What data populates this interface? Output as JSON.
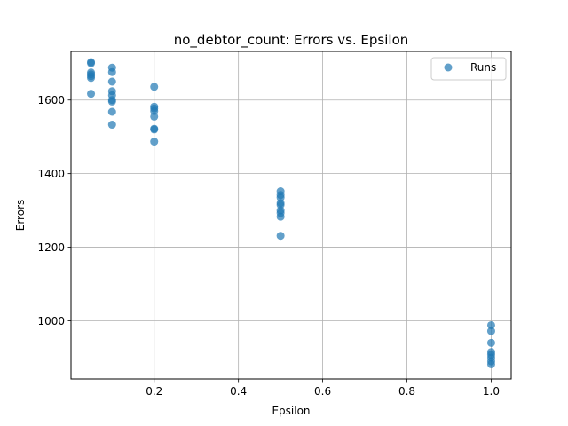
{
  "chart_data": {
    "type": "scatter",
    "title": "no_debtor_count: Errors vs. Epsilon",
    "xlabel": "Epsilon",
    "ylabel": "Errors",
    "xlim": [
      0.0025,
      1.0475
    ],
    "ylim": [
      842,
      1732
    ],
    "x_ticks": [
      0.2,
      0.4,
      0.6,
      0.8,
      1.0
    ],
    "x_tick_labels": [
      "0.2",
      "0.4",
      "0.6",
      "0.8",
      "1.0"
    ],
    "y_ticks": [
      1000,
      1200,
      1400,
      1600
    ],
    "y_tick_labels": [
      "1000",
      "1200",
      "1400",
      "1600"
    ],
    "grid": true,
    "legend": {
      "position": "top-right"
    },
    "series": [
      {
        "name": "Runs",
        "color": "#1f77b4",
        "points": [
          {
            "x": 0.05,
            "y": 1703
          },
          {
            "x": 0.05,
            "y": 1700
          },
          {
            "x": 0.05,
            "y": 1675
          },
          {
            "x": 0.05,
            "y": 1670
          },
          {
            "x": 0.05,
            "y": 1665
          },
          {
            "x": 0.05,
            "y": 1660
          },
          {
            "x": 0.05,
            "y": 1617
          },
          {
            "x": 0.1,
            "y": 1688
          },
          {
            "x": 0.1,
            "y": 1676
          },
          {
            "x": 0.1,
            "y": 1650
          },
          {
            "x": 0.1,
            "y": 1624
          },
          {
            "x": 0.1,
            "y": 1613
          },
          {
            "x": 0.1,
            "y": 1600
          },
          {
            "x": 0.1,
            "y": 1596
          },
          {
            "x": 0.1,
            "y": 1568
          },
          {
            "x": 0.1,
            "y": 1533
          },
          {
            "x": 0.2,
            "y": 1636
          },
          {
            "x": 0.2,
            "y": 1582
          },
          {
            "x": 0.2,
            "y": 1577
          },
          {
            "x": 0.2,
            "y": 1570
          },
          {
            "x": 0.2,
            "y": 1555
          },
          {
            "x": 0.2,
            "y": 1522
          },
          {
            "x": 0.2,
            "y": 1520
          },
          {
            "x": 0.2,
            "y": 1487
          },
          {
            "x": 0.5,
            "y": 1352
          },
          {
            "x": 0.5,
            "y": 1342
          },
          {
            "x": 0.5,
            "y": 1335
          },
          {
            "x": 0.5,
            "y": 1320
          },
          {
            "x": 0.5,
            "y": 1315
          },
          {
            "x": 0.5,
            "y": 1300
          },
          {
            "x": 0.5,
            "y": 1293
          },
          {
            "x": 0.5,
            "y": 1283
          },
          {
            "x": 0.5,
            "y": 1231
          },
          {
            "x": 1.0,
            "y": 988
          },
          {
            "x": 1.0,
            "y": 972
          },
          {
            "x": 1.0,
            "y": 940
          },
          {
            "x": 1.0,
            "y": 915
          },
          {
            "x": 1.0,
            "y": 908
          },
          {
            "x": 1.0,
            "y": 900
          },
          {
            "x": 1.0,
            "y": 890
          },
          {
            "x": 1.0,
            "y": 882
          }
        ]
      }
    ]
  }
}
